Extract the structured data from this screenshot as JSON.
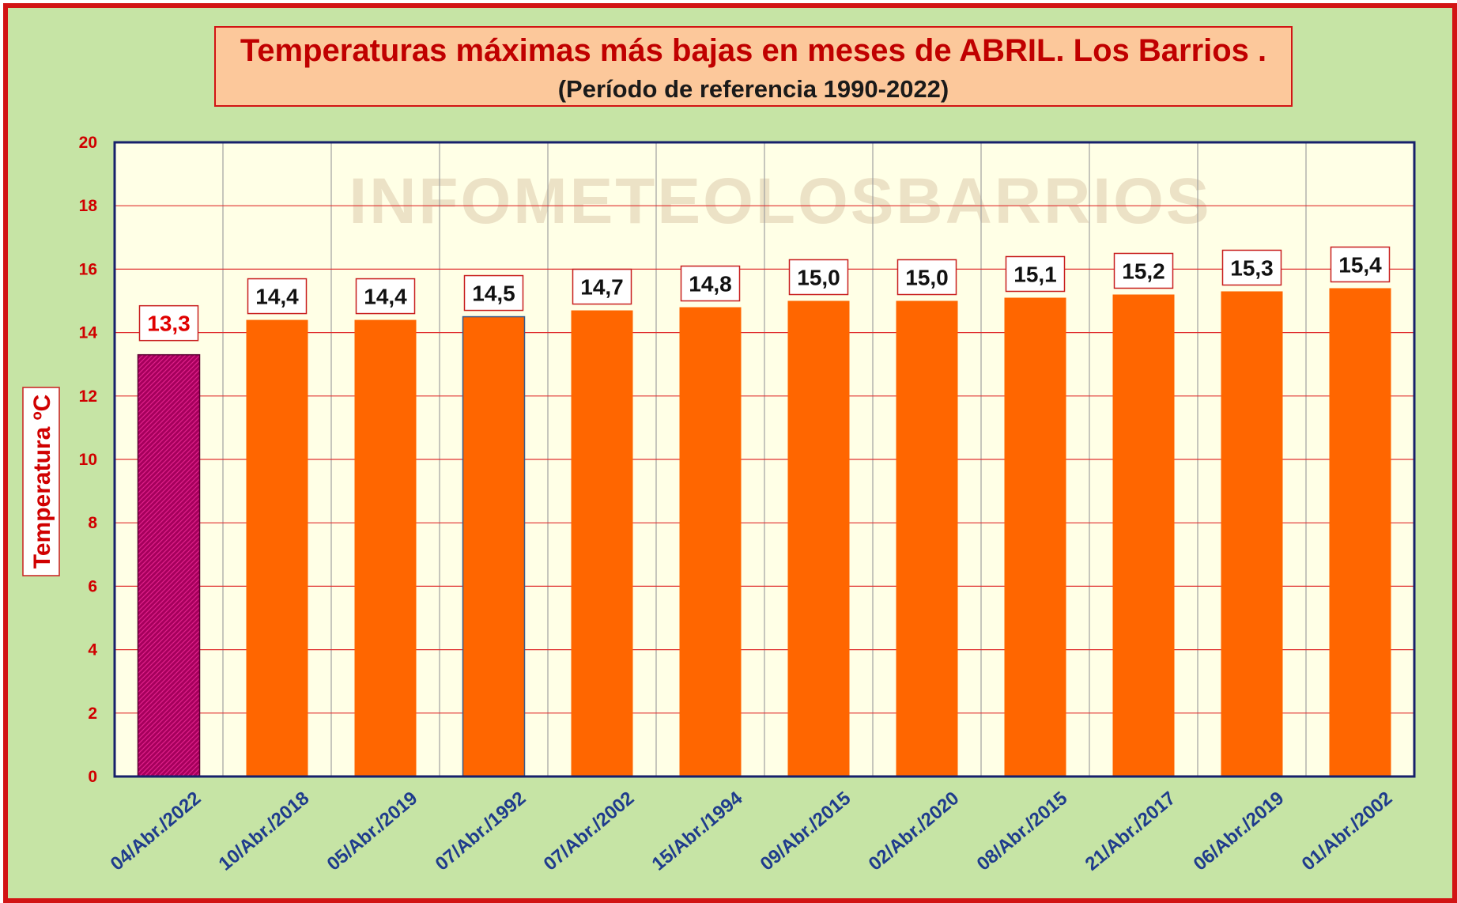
{
  "chart_data": {
    "type": "bar",
    "title": "Temperaturas máximas más bajas en meses de ABRIL. Los Barrios .",
    "subtitle": "(Período de referencia 1990-2022)",
    "watermark": "INFOMETEOLOSBARRIOS",
    "xlabel": "",
    "ylabel": "Temperatura ºC",
    "ylim": [
      0,
      20
    ],
    "yticks": [
      0,
      2,
      4,
      6,
      8,
      10,
      12,
      14,
      16,
      18,
      20
    ],
    "grid": true,
    "categories": [
      "04/Abr./2022",
      "10/Abr./2018",
      "05/Abr./2019",
      "07/Abr./1992",
      "07/Abr./2002",
      "15/Abr./1994",
      "09/Abr./2015",
      "02/Abr./2020",
      "08/Abr./2015",
      "21/Abr./2017",
      "06/Abr./2019",
      "01/Abr./2002"
    ],
    "values": [
      13.3,
      14.4,
      14.4,
      14.5,
      14.7,
      14.8,
      15.0,
      15.0,
      15.1,
      15.2,
      15.3,
      15.4
    ],
    "data_labels": [
      "13,3",
      "14,4",
      "14,4",
      "14,5",
      "14,7",
      "14,8",
      "15,0",
      "15,0",
      "15,1",
      "15,2",
      "15,3",
      "15,4"
    ],
    "highlight_index": 0,
    "colors": {
      "bar": "#ff6600",
      "highlight_bar": "#a5005c",
      "plot_background": "#ffffe6",
      "grid_horizontal": "#e03030",
      "grid_vertical": "#a0a0a0",
      "plot_border": "#17206b",
      "label_text": "#111111",
      "highlight_label_text": "#e00000",
      "frame_background": "#c6e4a5",
      "frame_border": "#d21414",
      "title_background": "#fcc89b"
    }
  }
}
